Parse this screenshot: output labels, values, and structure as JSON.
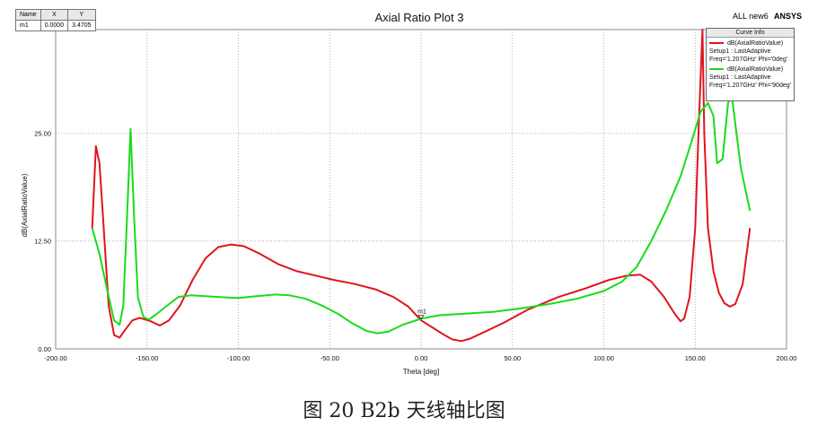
{
  "chart_data": {
    "type": "line",
    "title": "Axial Ratio Plot 3",
    "corner_label": "ALL new6",
    "brand": "ANSYS",
    "xlabel": "Theta [deg]",
    "ylabel": "dB(AxialRatioValue)",
    "xlim": [
      -200,
      200
    ],
    "ylim": [
      0,
      37
    ],
    "x_ticks": [
      -200,
      -150,
      -100,
      -50,
      0,
      50,
      100,
      150,
      200
    ],
    "x_tick_labels": [
      "-200.00",
      "-150.00",
      "-100.00",
      "-50.00",
      "0.00",
      "50.00",
      "100.00",
      "150.00",
      "200.00"
    ],
    "y_ticks": [
      0,
      12.5,
      25
    ],
    "y_tick_labels": [
      "0.00",
      "12.50",
      "25.00"
    ],
    "grid": true,
    "legend_title": "Curve Info",
    "legend_position": "top-right",
    "series": [
      {
        "name": "dB(AxialRatioValue)",
        "setup": "Setup1 : LastAdaptive",
        "condition": "Freq='1.207GHz' Phi='0deg'",
        "color": "#e0141e",
        "points": [
          [
            -180,
            14
          ],
          [
            -178,
            23.5
          ],
          [
            -176,
            21.5
          ],
          [
            -174,
            15
          ],
          [
            -171,
            5
          ],
          [
            -168,
            1.6
          ],
          [
            -165,
            1.3
          ],
          [
            -162,
            2.2
          ],
          [
            -158,
            3.3
          ],
          [
            -154,
            3.6
          ],
          [
            -148,
            3.2
          ],
          [
            -143,
            2.7
          ],
          [
            -138,
            3.3
          ],
          [
            -132,
            5
          ],
          [
            -125,
            8
          ],
          [
            -118,
            10.5
          ],
          [
            -111,
            11.8
          ],
          [
            -104,
            12.1
          ],
          [
            -97,
            11.9
          ],
          [
            -88,
            11
          ],
          [
            -78,
            9.8
          ],
          [
            -68,
            9
          ],
          [
            -58,
            8.5
          ],
          [
            -48,
            8
          ],
          [
            -36,
            7.5
          ],
          [
            -25,
            6.9
          ],
          [
            -15,
            6
          ],
          [
            -7,
            4.9
          ],
          [
            0,
            3.3
          ],
          [
            6,
            2.5
          ],
          [
            12,
            1.7
          ],
          [
            17,
            1.1
          ],
          [
            22,
            0.9
          ],
          [
            27,
            1.2
          ],
          [
            35,
            2
          ],
          [
            45,
            3
          ],
          [
            58,
            4.5
          ],
          [
            75,
            6
          ],
          [
            90,
            7
          ],
          [
            103,
            8
          ],
          [
            113,
            8.5
          ],
          [
            120,
            8.6
          ],
          [
            126,
            7.8
          ],
          [
            133,
            6
          ],
          [
            139,
            4
          ],
          [
            142,
            3.2
          ],
          [
            144,
            3.5
          ],
          [
            147,
            6
          ],
          [
            150,
            14
          ],
          [
            152,
            26
          ],
          [
            154,
            37
          ],
          [
            155,
            25
          ],
          [
            157,
            14
          ],
          [
            160,
            9
          ],
          [
            163,
            6.5
          ],
          [
            166,
            5.3
          ],
          [
            169,
            4.9
          ],
          [
            172,
            5.2
          ],
          [
            176,
            7.5
          ],
          [
            180,
            14
          ]
        ]
      },
      {
        "name": "dB(AxialRatioValue)",
        "setup": "Setup1 : LastAdaptive",
        "condition": "Freq='1.207GHz' Phi='90deg'",
        "color": "#19dc19",
        "points": [
          [
            -180,
            14
          ],
          [
            -176,
            11
          ],
          [
            -172,
            7
          ],
          [
            -168,
            3.3
          ],
          [
            -165,
            2.8
          ],
          [
            -163,
            5
          ],
          [
            -161,
            15
          ],
          [
            -159,
            25.5
          ],
          [
            -157,
            15
          ],
          [
            -155,
            6
          ],
          [
            -152,
            3.7
          ],
          [
            -149,
            3.4
          ],
          [
            -145,
            4
          ],
          [
            -139,
            5
          ],
          [
            -133,
            6
          ],
          [
            -126,
            6.2
          ],
          [
            -118,
            6.1
          ],
          [
            -110,
            6
          ],
          [
            -100,
            5.9
          ],
          [
            -90,
            6.1
          ],
          [
            -80,
            6.3
          ],
          [
            -72,
            6.2
          ],
          [
            -63,
            5.8
          ],
          [
            -54,
            5
          ],
          [
            -45,
            4
          ],
          [
            -38,
            3
          ],
          [
            -30,
            2.1
          ],
          [
            -24,
            1.8
          ],
          [
            -18,
            2
          ],
          [
            -10,
            2.8
          ],
          [
            0,
            3.5
          ],
          [
            10,
            3.9
          ],
          [
            25,
            4.1
          ],
          [
            40,
            4.3
          ],
          [
            55,
            4.7
          ],
          [
            70,
            5.2
          ],
          [
            85,
            5.8
          ],
          [
            100,
            6.7
          ],
          [
            110,
            7.8
          ],
          [
            118,
            9.5
          ],
          [
            126,
            12.5
          ],
          [
            134,
            16
          ],
          [
            142,
            20
          ],
          [
            148,
            24
          ],
          [
            153,
            27.5
          ],
          [
            157,
            28.5
          ],
          [
            160,
            27
          ],
          [
            162,
            21.5
          ],
          [
            165,
            22
          ],
          [
            168,
            28.5
          ],
          [
            170,
            29.5
          ],
          [
            172,
            26
          ],
          [
            175,
            21
          ],
          [
            180,
            16
          ]
        ]
      }
    ],
    "markers": {
      "headers": [
        "Name",
        "X",
        "Y"
      ],
      "rows": [
        [
          "m1",
          "0.0000",
          "3.4705"
        ]
      ]
    },
    "marker_point_label": "m1",
    "marker_point": [
      0,
      3.4705
    ]
  },
  "caption": "图 20 B2b 天线轴比图"
}
